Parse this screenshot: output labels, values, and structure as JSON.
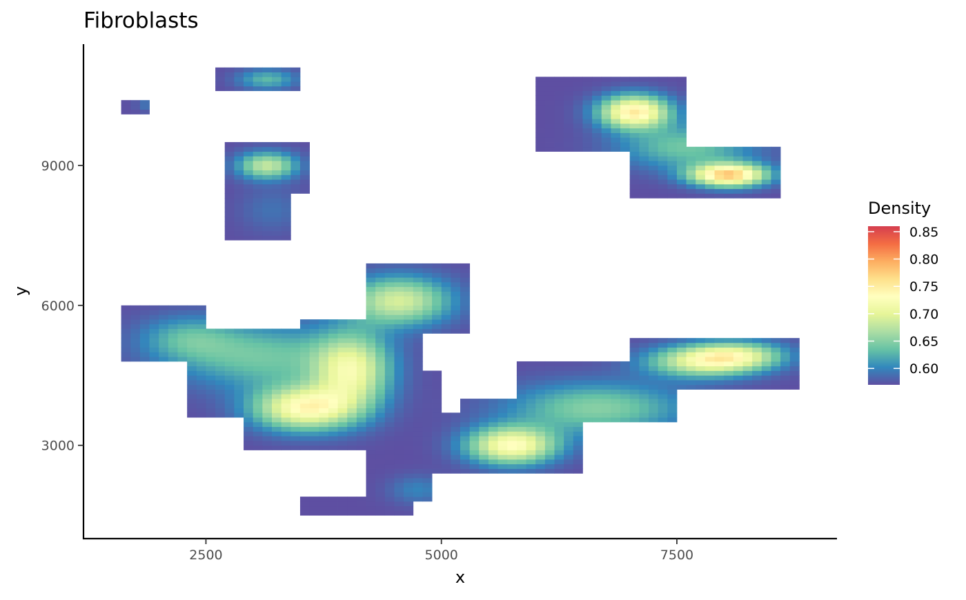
{
  "chart_data": {
    "type": "heatmap",
    "title": "Fibroblasts",
    "xlabel": "x",
    "ylabel": "y",
    "xlim": [
      1200,
      9200
    ],
    "ylim": [
      1000,
      11600
    ],
    "x_ticks": [
      2500,
      5000,
      7500
    ],
    "y_ticks": [
      3000,
      6000,
      9000
    ],
    "grid": false,
    "grid_cell_size": [
      100,
      100
    ],
    "legend": {
      "title": "Density",
      "placement": "right",
      "range": [
        0.57,
        0.86
      ],
      "ticks": [
        0.6,
        0.65,
        0.7,
        0.75,
        0.8,
        0.85
      ],
      "tick_labels": [
        "0.60",
        "0.65",
        "0.70",
        "0.75",
        "0.80",
        "0.85"
      ]
    },
    "palette": [
      "#5E4FA2",
      "#3288BD",
      "#66C2A5",
      "#ABDDA4",
      "#E6F598",
      "#FFFFBF",
      "#FEE08B",
      "#FDAE61",
      "#F46D43",
      "#D53E4F"
    ],
    "density_peaks": [
      {
        "x": 7050,
        "y": 10150,
        "sx": 260,
        "sy": 250,
        "amp": 0.18
      },
      {
        "x": 8050,
        "y": 8800,
        "sx": 280,
        "sy": 170,
        "amp": 0.205
      },
      {
        "x": 7600,
        "y": 9400,
        "sx": 500,
        "sy": 330,
        "amp": 0.07
      },
      {
        "x": 3150,
        "y": 9000,
        "sx": 220,
        "sy": 200,
        "amp": 0.11
      },
      {
        "x": 3200,
        "y": 8050,
        "sx": 250,
        "sy": 350,
        "amp": 0.02
      },
      {
        "x": 3150,
        "y": 10850,
        "sx": 220,
        "sy": 150,
        "amp": 0.06
      },
      {
        "x": 1950,
        "y": 10300,
        "sx": 120,
        "sy": 100,
        "amp": 0.03
      },
      {
        "x": 3550,
        "y": 3800,
        "sx": 380,
        "sy": 330,
        "amp": 0.16
      },
      {
        "x": 4050,
        "y": 4600,
        "sx": 280,
        "sy": 550,
        "amp": 0.13
      },
      {
        "x": 4550,
        "y": 6100,
        "sx": 380,
        "sy": 360,
        "amp": 0.12
      },
      {
        "x": 3100,
        "y": 4900,
        "sx": 650,
        "sy": 480,
        "amp": 0.07
      },
      {
        "x": 2300,
        "y": 5300,
        "sx": 360,
        "sy": 330,
        "amp": 0.05
      },
      {
        "x": 5750,
        "y": 3000,
        "sx": 330,
        "sy": 280,
        "amp": 0.16
      },
      {
        "x": 6650,
        "y": 3800,
        "sx": 650,
        "sy": 380,
        "amp": 0.08
      },
      {
        "x": 7800,
        "y": 4800,
        "sx": 420,
        "sy": 230,
        "amp": 0.13
      },
      {
        "x": 8150,
        "y": 4950,
        "sx": 350,
        "sy": 200,
        "amp": 0.09
      },
      {
        "x": 4750,
        "y": 2050,
        "sx": 220,
        "sy": 220,
        "amp": 0.03
      }
    ],
    "regions": [
      {
        "x0": 1600,
        "x1": 1900,
        "y0": 10100,
        "y1": 10450
      },
      {
        "x0": 2600,
        "x1": 3500,
        "y0": 10650,
        "y1": 11100
      },
      {
        "x0": 2700,
        "x1": 3600,
        "y0": 8400,
        "y1": 9500
      },
      {
        "x0": 2700,
        "x1": 3400,
        "y0": 7450,
        "y1": 8500
      },
      {
        "x0": 6000,
        "x1": 7600,
        "y0": 9300,
        "y1": 10900
      },
      {
        "x0": 7000,
        "x1": 8600,
        "y0": 8300,
        "y1": 9400
      },
      {
        "x0": 1650,
        "x1": 2500,
        "y0": 4850,
        "y1": 6000
      },
      {
        "x0": 2350,
        "x1": 4300,
        "y0": 3650,
        "y1": 5500
      },
      {
        "x0": 2900,
        "x1": 4300,
        "y0": 2950,
        "y1": 3800
      },
      {
        "x0": 3500,
        "x1": 4650,
        "y0": 4200,
        "y1": 5700
      },
      {
        "x0": 4250,
        "x1": 5300,
        "y0": 5400,
        "y1": 6900
      },
      {
        "x0": 4200,
        "x1": 4800,
        "y0": 4500,
        "y1": 5500
      },
      {
        "x0": 4200,
        "x1": 5000,
        "y0": 2650,
        "y1": 4600
      },
      {
        "x0": 4650,
        "x1": 5150,
        "y0": 2650,
        "y1": 3550
      },
      {
        "x0": 4900,
        "x1": 6250,
        "y0": 2400,
        "y1": 3700
      },
      {
        "x0": 5200,
        "x1": 6500,
        "y0": 2400,
        "y1": 4000
      },
      {
        "x0": 5800,
        "x1": 7500,
        "y0": 3500,
        "y1": 4800
      },
      {
        "x0": 7000,
        "x1": 8800,
        "y0": 4200,
        "y1": 5300
      },
      {
        "x0": 4250,
        "x1": 4950,
        "y0": 1800,
        "y1": 2700
      },
      {
        "x0": 3500,
        "x1": 4700,
        "y0": 1550,
        "y1": 1900
      }
    ]
  }
}
